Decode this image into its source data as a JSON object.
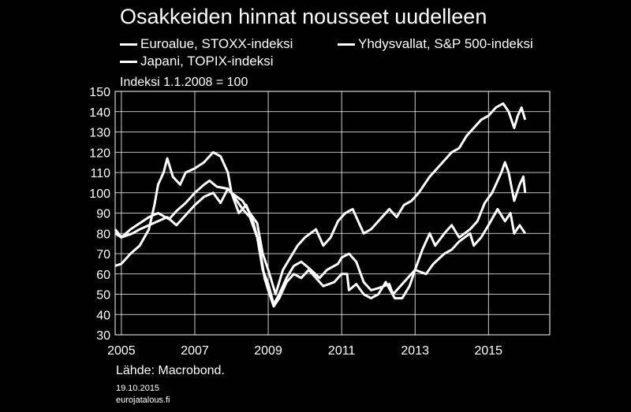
{
  "chart_data": {
    "type": "line",
    "title": "Osakkeiden hinnat nousseet uudelleen",
    "subtitle": "Indeksi 1.1.2008 = 100",
    "source": "Lähde: Macrobond.",
    "date_stamp": "19.10.2015",
    "site": "eurojatalous.fi",
    "xlim": [
      2004.83,
      2016.67
    ],
    "ylim": [
      30,
      150
    ],
    "x_ticks": [
      "2005",
      "2007",
      "2009",
      "2011",
      "2013",
      "2015"
    ],
    "x_tick_values": [
      2005,
      2007,
      2009,
      2011,
      2013,
      2015
    ],
    "y_ticks": [
      30,
      40,
      50,
      60,
      70,
      80,
      90,
      100,
      110,
      120,
      130,
      140,
      150
    ],
    "grid": true,
    "legend_position": "top",
    "line_color": "#ffffff",
    "series": [
      {
        "name": "Euroalue, STOXX-indeksi",
        "points": [
          [
            2004.83,
            80
          ],
          [
            2005.0,
            78
          ],
          [
            2005.25,
            82
          ],
          [
            2005.5,
            85
          ],
          [
            2005.75,
            88
          ],
          [
            2006.0,
            90
          ],
          [
            2006.3,
            87
          ],
          [
            2006.5,
            91
          ],
          [
            2006.75,
            95
          ],
          [
            2007.0,
            100
          ],
          [
            2007.25,
            104
          ],
          [
            2007.4,
            106
          ],
          [
            2007.6,
            103
          ],
          [
            2007.9,
            102
          ],
          [
            2008.0,
            100
          ],
          [
            2008.3,
            92
          ],
          [
            2008.5,
            88
          ],
          [
            2008.7,
            78
          ],
          [
            2008.85,
            62
          ],
          [
            2009.0,
            55
          ],
          [
            2009.15,
            45
          ],
          [
            2009.3,
            50
          ],
          [
            2009.5,
            58
          ],
          [
            2009.7,
            64
          ],
          [
            2009.9,
            66
          ],
          [
            2010.1,
            63
          ],
          [
            2010.4,
            58
          ],
          [
            2010.6,
            62
          ],
          [
            2010.9,
            65
          ],
          [
            2011.0,
            68
          ],
          [
            2011.2,
            70
          ],
          [
            2011.4,
            66
          ],
          [
            2011.6,
            56
          ],
          [
            2011.8,
            52
          ],
          [
            2012.0,
            53
          ],
          [
            2012.3,
            55
          ],
          [
            2012.4,
            50
          ],
          [
            2012.6,
            54
          ],
          [
            2012.8,
            58
          ],
          [
            2013.0,
            62
          ],
          [
            2013.3,
            60
          ],
          [
            2013.5,
            65
          ],
          [
            2013.8,
            70
          ],
          [
            2014.0,
            72
          ],
          [
            2014.2,
            76
          ],
          [
            2014.5,
            80
          ],
          [
            2014.6,
            74
          ],
          [
            2014.8,
            78
          ],
          [
            2015.0,
            84
          ],
          [
            2015.25,
            92
          ],
          [
            2015.45,
            86
          ],
          [
            2015.6,
            90
          ],
          [
            2015.7,
            80
          ],
          [
            2015.85,
            84
          ],
          [
            2016.0,
            80
          ]
        ]
      },
      {
        "name": "Yhdysvallat, S&P 500-indeksi",
        "points": [
          [
            2004.83,
            82
          ],
          [
            2005.0,
            78
          ],
          [
            2005.3,
            80
          ],
          [
            2005.5,
            82
          ],
          [
            2005.75,
            84
          ],
          [
            2006.0,
            86
          ],
          [
            2006.25,
            88
          ],
          [
            2006.5,
            84
          ],
          [
            2006.8,
            90
          ],
          [
            2007.0,
            94
          ],
          [
            2007.25,
            98
          ],
          [
            2007.5,
            100
          ],
          [
            2007.7,
            95
          ],
          [
            2007.9,
            102
          ],
          [
            2008.0,
            100
          ],
          [
            2008.3,
            96
          ],
          [
            2008.5,
            90
          ],
          [
            2008.7,
            85
          ],
          [
            2008.85,
            70
          ],
          [
            2009.0,
            62
          ],
          [
            2009.2,
            50
          ],
          [
            2009.4,
            62
          ],
          [
            2009.6,
            68
          ],
          [
            2009.8,
            74
          ],
          [
            2010.0,
            78
          ],
          [
            2010.3,
            82
          ],
          [
            2010.5,
            74
          ],
          [
            2010.7,
            78
          ],
          [
            2010.9,
            86
          ],
          [
            2011.1,
            90
          ],
          [
            2011.3,
            92
          ],
          [
            2011.6,
            80
          ],
          [
            2011.8,
            82
          ],
          [
            2012.0,
            86
          ],
          [
            2012.3,
            92
          ],
          [
            2012.5,
            88
          ],
          [
            2012.7,
            94
          ],
          [
            2012.9,
            96
          ],
          [
            2013.1,
            100
          ],
          [
            2013.4,
            108
          ],
          [
            2013.7,
            114
          ],
          [
            2014.0,
            120
          ],
          [
            2014.2,
            122
          ],
          [
            2014.4,
            128
          ],
          [
            2014.6,
            132
          ],
          [
            2014.8,
            136
          ],
          [
            2015.0,
            138
          ],
          [
            2015.2,
            142
          ],
          [
            2015.4,
            144
          ],
          [
            2015.55,
            140
          ],
          [
            2015.7,
            132
          ],
          [
            2015.8,
            138
          ],
          [
            2015.9,
            142
          ],
          [
            2016.0,
            136
          ]
        ]
      },
      {
        "name": "Japani, TOPIX-indeksi",
        "points": [
          [
            2004.83,
            64
          ],
          [
            2005.0,
            65
          ],
          [
            2005.25,
            70
          ],
          [
            2005.5,
            74
          ],
          [
            2005.75,
            82
          ],
          [
            2005.9,
            94
          ],
          [
            2006.0,
            104
          ],
          [
            2006.15,
            110
          ],
          [
            2006.25,
            117
          ],
          [
            2006.4,
            108
          ],
          [
            2006.6,
            104
          ],
          [
            2006.75,
            110
          ],
          [
            2007.0,
            112
          ],
          [
            2007.25,
            115
          ],
          [
            2007.5,
            120
          ],
          [
            2007.7,
            118
          ],
          [
            2007.9,
            110
          ],
          [
            2008.0,
            100
          ],
          [
            2008.2,
            90
          ],
          [
            2008.4,
            94
          ],
          [
            2008.6,
            85
          ],
          [
            2008.75,
            75
          ],
          [
            2008.9,
            58
          ],
          [
            2009.0,
            52
          ],
          [
            2009.15,
            44
          ],
          [
            2009.3,
            48
          ],
          [
            2009.5,
            56
          ],
          [
            2009.7,
            60
          ],
          [
            2009.9,
            58
          ],
          [
            2010.1,
            62
          ],
          [
            2010.3,
            58
          ],
          [
            2010.5,
            54
          ],
          [
            2010.8,
            56
          ],
          [
            2011.0,
            60
          ],
          [
            2011.15,
            60
          ],
          [
            2011.2,
            52
          ],
          [
            2011.4,
            55
          ],
          [
            2011.6,
            50
          ],
          [
            2011.8,
            48
          ],
          [
            2012.0,
            50
          ],
          [
            2012.2,
            56
          ],
          [
            2012.45,
            48
          ],
          [
            2012.65,
            48
          ],
          [
            2012.85,
            54
          ],
          [
            2013.0,
            62
          ],
          [
            2013.2,
            72
          ],
          [
            2013.4,
            80
          ],
          [
            2013.55,
            74
          ],
          [
            2013.8,
            80
          ],
          [
            2014.0,
            84
          ],
          [
            2014.2,
            78
          ],
          [
            2014.5,
            82
          ],
          [
            2014.7,
            86
          ],
          [
            2014.9,
            95
          ],
          [
            2015.1,
            100
          ],
          [
            2015.35,
            110
          ],
          [
            2015.45,
            115
          ],
          [
            2015.55,
            110
          ],
          [
            2015.7,
            96
          ],
          [
            2015.85,
            104
          ],
          [
            2015.95,
            108
          ],
          [
            2016.0,
            100
          ]
        ]
      }
    ]
  }
}
